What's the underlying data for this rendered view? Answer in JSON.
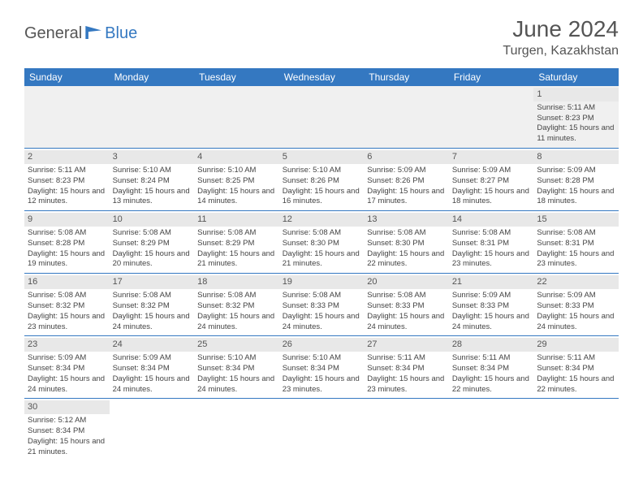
{
  "logo": {
    "part1": "General",
    "part2": "Blue"
  },
  "title": "June 2024",
  "subtitle": "Turgen, Kazakhstan",
  "header_bg": "#3478c1",
  "border_color": "#3478c1",
  "daynum_bg": "#e8e8e8",
  "week_headers": [
    "Sunday",
    "Monday",
    "Tuesday",
    "Wednesday",
    "Thursday",
    "Friday",
    "Saturday"
  ],
  "weeks": [
    [
      null,
      null,
      null,
      null,
      null,
      null,
      {
        "n": "1",
        "sr": "5:11 AM",
        "ss": "8:23 PM",
        "dl": "15 hours and 11 minutes."
      }
    ],
    [
      {
        "n": "2",
        "sr": "5:11 AM",
        "ss": "8:23 PM",
        "dl": "15 hours and 12 minutes."
      },
      {
        "n": "3",
        "sr": "5:10 AM",
        "ss": "8:24 PM",
        "dl": "15 hours and 13 minutes."
      },
      {
        "n": "4",
        "sr": "5:10 AM",
        "ss": "8:25 PM",
        "dl": "15 hours and 14 minutes."
      },
      {
        "n": "5",
        "sr": "5:10 AM",
        "ss": "8:26 PM",
        "dl": "15 hours and 16 minutes."
      },
      {
        "n": "6",
        "sr": "5:09 AM",
        "ss": "8:26 PM",
        "dl": "15 hours and 17 minutes."
      },
      {
        "n": "7",
        "sr": "5:09 AM",
        "ss": "8:27 PM",
        "dl": "15 hours and 18 minutes."
      },
      {
        "n": "8",
        "sr": "5:09 AM",
        "ss": "8:28 PM",
        "dl": "15 hours and 18 minutes."
      }
    ],
    [
      {
        "n": "9",
        "sr": "5:08 AM",
        "ss": "8:28 PM",
        "dl": "15 hours and 19 minutes."
      },
      {
        "n": "10",
        "sr": "5:08 AM",
        "ss": "8:29 PM",
        "dl": "15 hours and 20 minutes."
      },
      {
        "n": "11",
        "sr": "5:08 AM",
        "ss": "8:29 PM",
        "dl": "15 hours and 21 minutes."
      },
      {
        "n": "12",
        "sr": "5:08 AM",
        "ss": "8:30 PM",
        "dl": "15 hours and 21 minutes."
      },
      {
        "n": "13",
        "sr": "5:08 AM",
        "ss": "8:30 PM",
        "dl": "15 hours and 22 minutes."
      },
      {
        "n": "14",
        "sr": "5:08 AM",
        "ss": "8:31 PM",
        "dl": "15 hours and 23 minutes."
      },
      {
        "n": "15",
        "sr": "5:08 AM",
        "ss": "8:31 PM",
        "dl": "15 hours and 23 minutes."
      }
    ],
    [
      {
        "n": "16",
        "sr": "5:08 AM",
        "ss": "8:32 PM",
        "dl": "15 hours and 23 minutes."
      },
      {
        "n": "17",
        "sr": "5:08 AM",
        "ss": "8:32 PM",
        "dl": "15 hours and 24 minutes."
      },
      {
        "n": "18",
        "sr": "5:08 AM",
        "ss": "8:32 PM",
        "dl": "15 hours and 24 minutes."
      },
      {
        "n": "19",
        "sr": "5:08 AM",
        "ss": "8:33 PM",
        "dl": "15 hours and 24 minutes."
      },
      {
        "n": "20",
        "sr": "5:08 AM",
        "ss": "8:33 PM",
        "dl": "15 hours and 24 minutes."
      },
      {
        "n": "21",
        "sr": "5:09 AM",
        "ss": "8:33 PM",
        "dl": "15 hours and 24 minutes."
      },
      {
        "n": "22",
        "sr": "5:09 AM",
        "ss": "8:33 PM",
        "dl": "15 hours and 24 minutes."
      }
    ],
    [
      {
        "n": "23",
        "sr": "5:09 AM",
        "ss": "8:34 PM",
        "dl": "15 hours and 24 minutes."
      },
      {
        "n": "24",
        "sr": "5:09 AM",
        "ss": "8:34 PM",
        "dl": "15 hours and 24 minutes."
      },
      {
        "n": "25",
        "sr": "5:10 AM",
        "ss": "8:34 PM",
        "dl": "15 hours and 24 minutes."
      },
      {
        "n": "26",
        "sr": "5:10 AM",
        "ss": "8:34 PM",
        "dl": "15 hours and 23 minutes."
      },
      {
        "n": "27",
        "sr": "5:11 AM",
        "ss": "8:34 PM",
        "dl": "15 hours and 23 minutes."
      },
      {
        "n": "28",
        "sr": "5:11 AM",
        "ss": "8:34 PM",
        "dl": "15 hours and 22 minutes."
      },
      {
        "n": "29",
        "sr": "5:11 AM",
        "ss": "8:34 PM",
        "dl": "15 hours and 22 minutes."
      }
    ],
    [
      {
        "n": "30",
        "sr": "5:12 AM",
        "ss": "8:34 PM",
        "dl": "15 hours and 21 minutes."
      },
      null,
      null,
      null,
      null,
      null,
      null
    ]
  ],
  "labels": {
    "sunrise": "Sunrise:",
    "sunset": "Sunset:",
    "daylight": "Daylight:"
  }
}
